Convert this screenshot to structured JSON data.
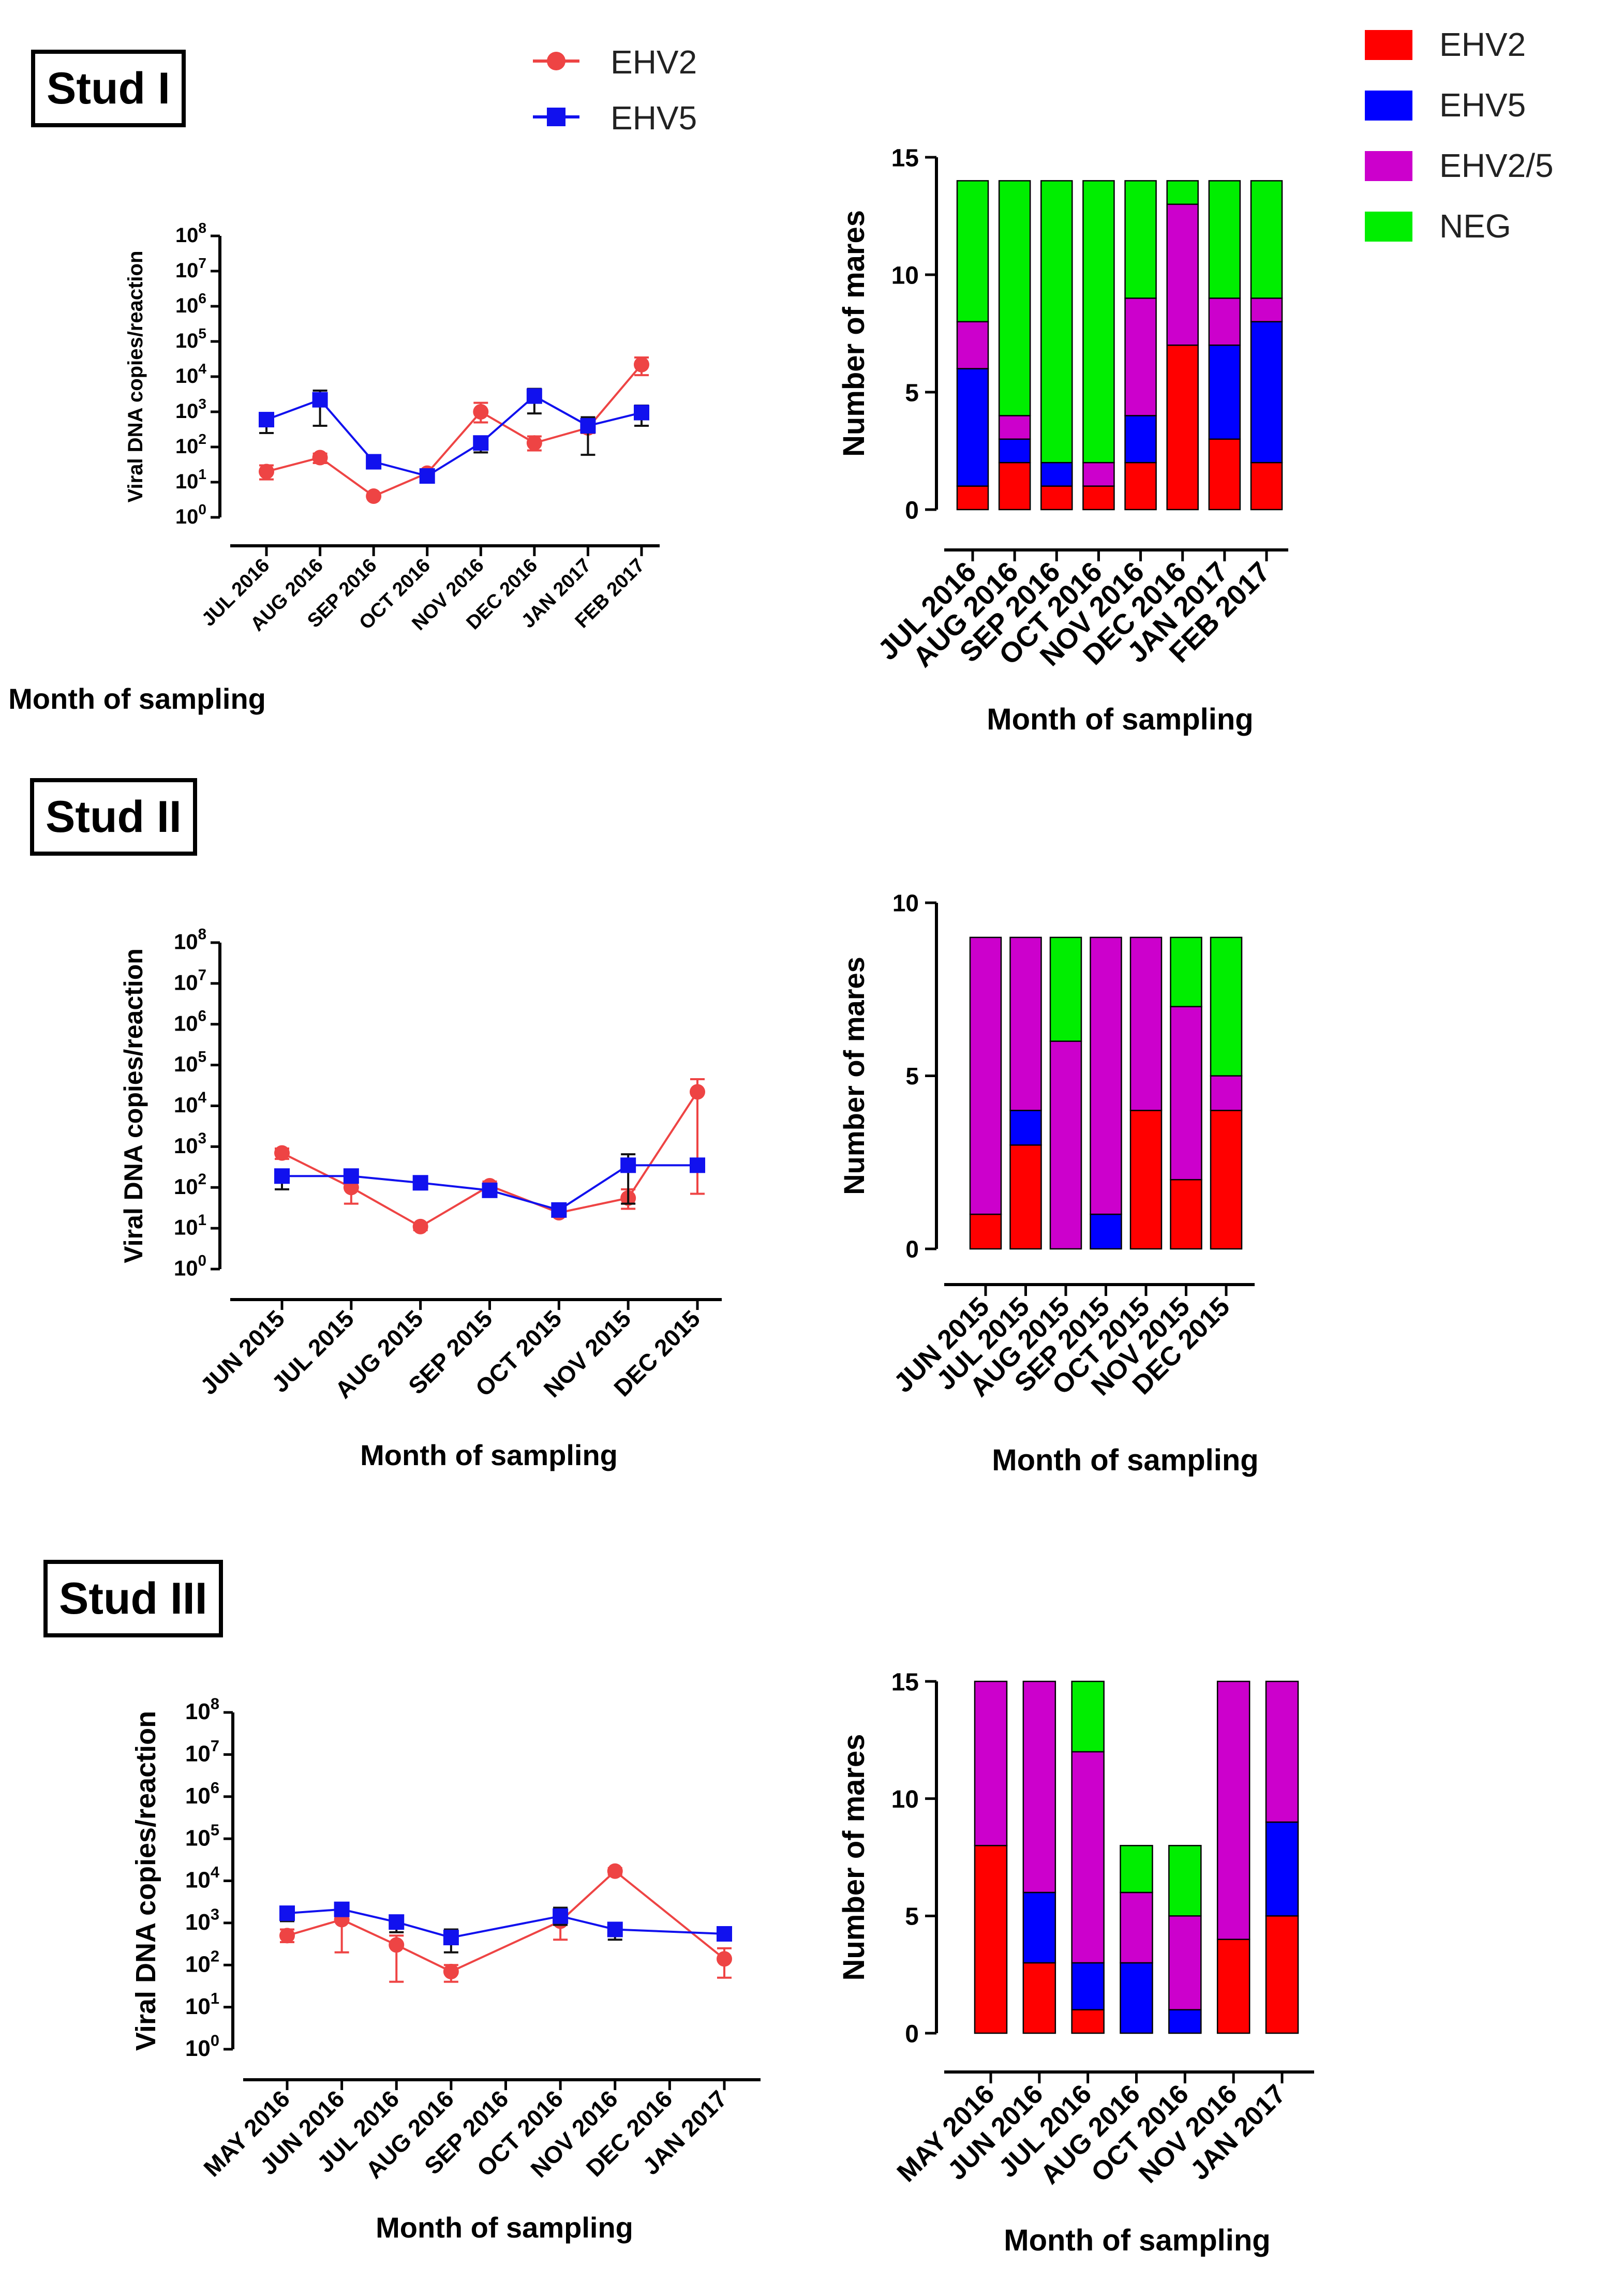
{
  "legend_line": [
    {
      "label": "EHV2",
      "color": "#ee4444",
      "marker": "circle"
    },
    {
      "label": "EHV5",
      "color": "#1111ee",
      "marker": "square"
    }
  ],
  "legend_bar": [
    {
      "label": "EHV2",
      "color": "#ff0000"
    },
    {
      "label": "EHV5",
      "color": "#0000ff"
    },
    {
      "label": "EHV2/5",
      "color": "#cc00cc"
    },
    {
      "label": "NEG",
      "color": "#00ee00"
    }
  ],
  "studs": [
    {
      "title": "Stud I"
    },
    {
      "title": "Stud II"
    },
    {
      "title": "Stud III"
    }
  ],
  "chart_data": [
    {
      "type": "line",
      "panel": "Stud I",
      "ylabel": "Viral DNA copies/reaction",
      "xlabel": "Month of sampling",
      "yscale": "log10",
      "yticks": [
        "10^0",
        "10^1",
        "10^2",
        "10^3",
        "10^4",
        "10^5",
        "10^6",
        "10^7",
        "10^8"
      ],
      "ylim": [
        1,
        100000000
      ],
      "categories": [
        "JUL 2016",
        "AUG 2016",
        "SEP 2016",
        "OCT 2016",
        "NOV 2016",
        "DEC 2016",
        "JAN 2017",
        "FEB 2017"
      ],
      "series": [
        {
          "name": "EHV2",
          "values": [
            20,
            50,
            4,
            18,
            1000,
            130,
            350,
            22000
          ],
          "err_low": [
            12,
            35,
            4,
            14,
            500,
            80,
            250,
            11000
          ],
          "err_high": [
            30,
            65,
            4,
            22,
            1800,
            200,
            500,
            35000
          ]
        },
        {
          "name": "EHV5",
          "values": [
            600,
            2200,
            38,
            15,
            130,
            2800,
            400,
            950
          ],
          "err_low": [
            250,
            400,
            30,
            12,
            70,
            900,
            60,
            400
          ],
          "err_high": [
            900,
            4000,
            45,
            18,
            200,
            4500,
            700,
            1500
          ]
        }
      ]
    },
    {
      "type": "bar",
      "panel": "Stud I",
      "stacked": true,
      "ylabel": "Number of mares",
      "xlabel": "Month of sampling",
      "ylim": [
        0,
        15
      ],
      "yticks": [
        0,
        5,
        10,
        15
      ],
      "categories": [
        "JUL 2016",
        "AUG 2016",
        "SEP 2016",
        "OCT 2016",
        "NOV 2016",
        "DEC 2016",
        "JAN 2017",
        "FEB 2017"
      ],
      "series": [
        {
          "name": "EHV2",
          "values": [
            1,
            2,
            1,
            1,
            2,
            7,
            3,
            2
          ]
        },
        {
          "name": "EHV5",
          "values": [
            5,
            1,
            1,
            0,
            2,
            0,
            4,
            6
          ]
        },
        {
          "name": "EHV2/5",
          "values": [
            2,
            1,
            0,
            1,
            5,
            6,
            2,
            1
          ]
        },
        {
          "name": "NEG",
          "values": [
            6,
            10,
            12,
            12,
            5,
            1,
            5,
            5
          ]
        }
      ]
    },
    {
      "type": "line",
      "panel": "Stud II",
      "ylabel": "Viral DNA copies/reaction",
      "xlabel": "Month of sampling",
      "yscale": "log10",
      "yticks": [
        "10^0",
        "10^1",
        "10^2",
        "10^3",
        "10^4",
        "10^5",
        "10^6",
        "10^7",
        "10^8"
      ],
      "ylim": [
        1,
        100000000
      ],
      "categories": [
        "JUN 2015",
        "JUL 2015",
        "AUG 2015",
        "SEP 2015",
        "OCT 2015",
        "NOV 2015",
        "DEC 2015"
      ],
      "series": [
        {
          "name": "EHV2",
          "values": [
            700,
            100,
            11,
            110,
            24,
            55,
            22000
          ],
          "err_low": [
            500,
            40,
            9,
            80,
            20,
            30,
            70
          ],
          "err_high": [
            900,
            160,
            13,
            140,
            28,
            90,
            45000
          ]
        },
        {
          "name": "EHV5",
          "values": [
            190,
            190,
            130,
            85,
            28,
            350,
            350
          ],
          "err_low": [
            90,
            150,
            110,
            60,
            24,
            40,
            300
          ],
          "err_high": [
            260,
            230,
            150,
            110,
            32,
            650,
            400
          ]
        }
      ]
    },
    {
      "type": "bar",
      "panel": "Stud II",
      "stacked": true,
      "ylabel": "Number of mares",
      "xlabel": "Month of sampling",
      "ylim": [
        0,
        10
      ],
      "yticks": [
        0,
        5,
        10
      ],
      "categories": [
        "JUN 2015",
        "JUL 2015",
        "AUG 2015",
        "SEP 2015",
        "OCT 2015",
        "NOV 2015",
        "DEC 2015"
      ],
      "series": [
        {
          "name": "EHV2",
          "values": [
            1,
            3,
            0,
            0,
            4,
            2,
            4
          ]
        },
        {
          "name": "EHV5",
          "values": [
            0,
            1,
            0,
            1,
            0,
            0,
            0
          ]
        },
        {
          "name": "EHV2/5",
          "values": [
            8,
            5,
            6,
            8,
            5,
            5,
            1
          ]
        },
        {
          "name": "NEG",
          "values": [
            0,
            0,
            3,
            0,
            0,
            2,
            4
          ]
        }
      ]
    },
    {
      "type": "line",
      "panel": "Stud III",
      "ylabel": "Viral DNA copies/reaction",
      "xlabel": "Month of sampling",
      "yscale": "log10",
      "yticks": [
        "10^0",
        "10^1",
        "10^2",
        "10^3",
        "10^4",
        "10^5",
        "10^6",
        "10^7",
        "10^8"
      ],
      "ylim": [
        1,
        100000000
      ],
      "categories": [
        "MAY 2016",
        "JUN 2016",
        "JUL 2016",
        "AUG 2016",
        "SEP 2016",
        "OCT 2016",
        "NOV 2016",
        "DEC 2016",
        "JAN 2017"
      ],
      "series": [
        {
          "name": "EHV2",
          "values": [
            500,
            1200,
            300,
            70,
            null,
            1100,
            17000,
            null,
            140
          ],
          "err_low": [
            350,
            200,
            40,
            40,
            null,
            400,
            14000,
            null,
            50
          ],
          "err_high": [
            700,
            2000,
            500,
            100,
            null,
            1800,
            20000,
            null,
            250
          ]
        },
        {
          "name": "EHV5",
          "values": [
            1700,
            2100,
            1050,
            450,
            null,
            1450,
            700,
            null,
            550
          ],
          "err_low": [
            1100,
            1700,
            600,
            200,
            null,
            900,
            400,
            null,
            450
          ],
          "err_high": [
            2300,
            2600,
            1500,
            700,
            null,
            2300,
            1000,
            null,
            650
          ]
        }
      ]
    },
    {
      "type": "bar",
      "panel": "Stud III",
      "stacked": true,
      "ylabel": "Number of mares",
      "xlabel": "Month of sampling",
      "ylim": [
        0,
        15
      ],
      "yticks": [
        0,
        5,
        10,
        15
      ],
      "categories": [
        "MAY 2016",
        "JUN 2016",
        "JUL 2016",
        "AUG 2016",
        "OCT 2016",
        "NOV 2016",
        "JAN 2017"
      ],
      "series": [
        {
          "name": "EHV2",
          "values": [
            8,
            3,
            1,
            0,
            0,
            4,
            5
          ]
        },
        {
          "name": "EHV5",
          "values": [
            0,
            3,
            2,
            3,
            1,
            0,
            4
          ]
        },
        {
          "name": "EHV2/5",
          "values": [
            7,
            9,
            9,
            3,
            4,
            11,
            6
          ]
        },
        {
          "name": "NEG",
          "values": [
            0,
            0,
            3,
            2,
            3,
            0,
            0
          ]
        }
      ]
    }
  ]
}
